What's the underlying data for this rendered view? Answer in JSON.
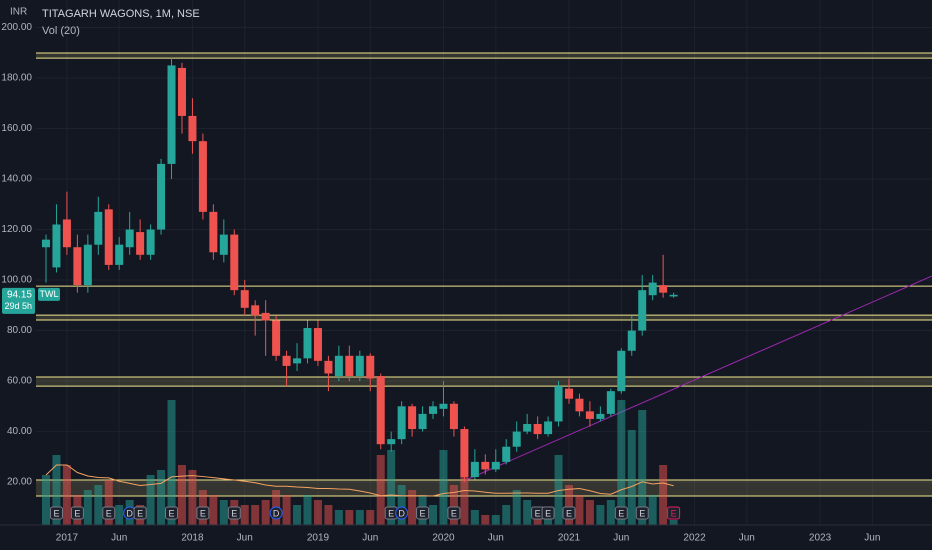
{
  "chart_data": {
    "type": "candlestick",
    "title": "TITAGARH WAGONS, 1M, NSE",
    "subtitle": "Vol (20)",
    "y_label": "INR",
    "x": [
      "2016-11",
      "2016-12",
      "2017-01",
      "2017-02",
      "2017-03",
      "2017-04",
      "2017-05",
      "2017-06",
      "2017-07",
      "2017-08",
      "2017-09",
      "2017-10",
      "2017-11",
      "2017-12",
      "2018-01",
      "2018-02",
      "2018-03",
      "2018-04",
      "2018-05",
      "2018-06",
      "2018-07",
      "2018-08",
      "2018-09",
      "2018-10",
      "2018-11",
      "2018-12",
      "2019-01",
      "2019-02",
      "2019-03",
      "2019-04",
      "2019-05",
      "2019-06",
      "2019-07",
      "2019-08",
      "2019-09",
      "2019-10",
      "2019-11",
      "2019-12",
      "2020-01",
      "2020-02",
      "2020-03",
      "2020-04",
      "2020-05",
      "2020-06",
      "2020-07",
      "2020-08",
      "2020-09",
      "2020-10",
      "2020-11",
      "2020-12",
      "2021-01",
      "2021-02",
      "2021-03",
      "2021-04",
      "2021-05",
      "2021-06",
      "2021-07",
      "2021-08",
      "2021-09",
      "2021-10",
      "2021-11"
    ],
    "open": [
      113,
      105,
      124,
      113,
      98,
      114,
      128,
      106,
      113,
      119,
      110,
      120,
      146,
      184,
      165,
      155,
      127,
      110,
      118,
      96,
      90,
      87,
      84,
      70,
      67,
      69,
      81,
      68,
      62,
      70,
      62,
      70,
      62,
      35,
      37,
      50,
      41,
      47,
      49,
      51,
      41,
      22,
      28,
      25,
      28,
      34,
      40,
      43,
      39,
      44,
      57,
      53,
      48,
      45,
      47,
      56,
      72,
      80,
      94,
      98,
      93.5
    ],
    "high": [
      118,
      130,
      135,
      118,
      118,
      133,
      130,
      117,
      127,
      124,
      122,
      148,
      188,
      186,
      172,
      158,
      130,
      124,
      120,
      100,
      92,
      92,
      86,
      72,
      75,
      84,
      84,
      70,
      74,
      74,
      72,
      71,
      63,
      40,
      52,
      51,
      50,
      52,
      60,
      52,
      42,
      33,
      31,
      33,
      37,
      44,
      47,
      46,
      46,
      60,
      61,
      55,
      52,
      50,
      57,
      73,
      86,
      102,
      102,
      110,
      95
    ],
    "low": [
      99,
      103,
      110,
      95,
      95,
      110,
      104,
      104,
      110,
      108,
      108,
      118,
      140,
      158,
      150,
      124,
      108,
      107,
      94,
      86,
      78,
      70,
      68,
      58,
      64,
      67,
      66,
      56,
      60,
      60,
      60,
      56,
      33,
      32,
      35,
      38,
      40,
      45,
      46,
      38,
      20,
      21,
      23,
      24,
      27,
      32,
      39,
      37,
      38,
      42,
      51,
      46,
      42,
      44,
      46,
      55,
      70,
      78,
      92,
      93,
      93
    ],
    "close": [
      116,
      122,
      113,
      98,
      114,
      127,
      106,
      114,
      120,
      110,
      120,
      146,
      185,
      165,
      155,
      127,
      111,
      118,
      96,
      89,
      86,
      84,
      70,
      66,
      69,
      81,
      68,
      63,
      70,
      62,
      70,
      61,
      35,
      37,
      50,
      41,
      47,
      50,
      51,
      41,
      22,
      28,
      25,
      28,
      34,
      40,
      43,
      39,
      44,
      58,
      53,
      48,
      45,
      47,
      56,
      72,
      80,
      96,
      99,
      95,
      94.15
    ],
    "volume": [
      10,
      14,
      12,
      6,
      7,
      8,
      9,
      4,
      5,
      4,
      10,
      11,
      25,
      12,
      11,
      7,
      6,
      5,
      5,
      4,
      4,
      5,
      7,
      6,
      4,
      6,
      5,
      4,
      3,
      3,
      3,
      3,
      14,
      15,
      8,
      7,
      6,
      4,
      15,
      8,
      12,
      3,
      2,
      2,
      4,
      7,
      5,
      3,
      3,
      14,
      8,
      6,
      5,
      4,
      5,
      25,
      19,
      23,
      6,
      12,
      1
    ],
    "up_color": "#26a69a",
    "down_color": "#ef5350",
    "ylim": [
      3,
      210.9
    ],
    "yticks": [
      {
        "value": 20,
        "label": "20.00"
      },
      {
        "value": 40,
        "label": "40.00"
      },
      {
        "value": 60,
        "label": "60.00"
      },
      {
        "value": 80,
        "label": "80.00"
      },
      {
        "value": 100,
        "label": "100.00"
      },
      {
        "value": 120,
        "label": "120.00"
      },
      {
        "value": 140,
        "label": "140.00"
      },
      {
        "value": 160,
        "label": "160.00"
      },
      {
        "value": 180,
        "label": "180.00"
      },
      {
        "value": 200,
        "label": "200.00"
      }
    ],
    "xticks": [
      {
        "value": "2017-01",
        "label": "2017"
      },
      {
        "value": "2017-06",
        "label": "Jun"
      },
      {
        "value": "2018-01",
        "label": "2018"
      },
      {
        "value": "2018-06",
        "label": "Jun"
      },
      {
        "value": "2019-01",
        "label": "2019"
      },
      {
        "value": "2019-06",
        "label": "Jun"
      },
      {
        "value": "2020-01",
        "label": "2020"
      },
      {
        "value": "2020-06",
        "label": "Jun"
      },
      {
        "value": "2021-01",
        "label": "2021"
      },
      {
        "value": "2021-06",
        "label": "Jun"
      },
      {
        "value": "2022-01",
        "label": "2022"
      },
      {
        "value": "2022-06",
        "label": "Jun"
      },
      {
        "value": "2023-01",
        "label": "2023"
      },
      {
        "value": "2023-06",
        "label": "Jun"
      }
    ],
    "grid": true,
    "bands": [
      [
        187.9,
        189.9
      ],
      [
        84.2,
        86.1
      ],
      [
        58,
        61.6
      ],
      [
        14.5,
        20.8
      ]
    ],
    "level_lines": [
      97.6
    ],
    "level_color": "#f0e68c",
    "last_price": 94.15,
    "symbol": "TWL",
    "countdown": "29d 5h",
    "events": [
      {
        "x": "2016-12",
        "label": "E"
      },
      {
        "x": "2017-02",
        "label": "E"
      },
      {
        "x": "2017-05",
        "label": "E"
      },
      {
        "x": "2017-07",
        "label": "D"
      },
      {
        "x": "2017-08",
        "label": "E"
      },
      {
        "x": "2017-11",
        "label": "E"
      },
      {
        "x": "2018-02",
        "label": "E"
      },
      {
        "x": "2018-05",
        "label": "E"
      },
      {
        "x": "2018-09",
        "label": "D"
      },
      {
        "x": "2019-08",
        "label": "E"
      },
      {
        "x": "2019-09",
        "label": "D"
      },
      {
        "x": "2019-11",
        "label": "E"
      },
      {
        "x": "2020-02",
        "label": "E"
      },
      {
        "x": "2020-10",
        "label": "E"
      },
      {
        "x": "2020-11",
        "label": "E"
      },
      {
        "x": "2021-01",
        "label": "E"
      },
      {
        "x": "2021-06",
        "label": "E"
      },
      {
        "x": "2021-08",
        "label": "E"
      },
      {
        "x": "2021-11",
        "label": "E"
      }
    ]
  }
}
